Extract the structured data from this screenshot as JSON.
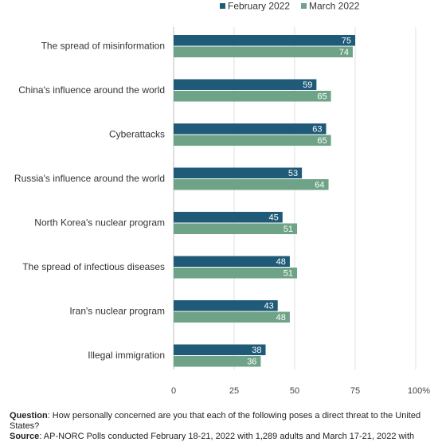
{
  "chart_data": {
    "type": "bar",
    "orientation": "horizontal",
    "categories": [
      "The spread of misinformation",
      "China's influence around the world",
      "Cyberattacks",
      "Russia's influence around the world",
      "North Korea's nuclear program",
      "The spread of infectious diseases",
      "Iran's nuclear program",
      "Illegal immigration"
    ],
    "series": [
      {
        "name": "February 2022",
        "color": "#1f5b79",
        "values": [
          75,
          59,
          63,
          53,
          45,
          48,
          43,
          38
        ]
      },
      {
        "name": "March 2022",
        "color": "#6fa387",
        "values": [
          74,
          65,
          65,
          64,
          51,
          51,
          48,
          36
        ]
      }
    ],
    "xlim": [
      0,
      100
    ],
    "x_ticks": [
      0,
      25,
      50,
      75,
      100
    ],
    "x_tick_labels": [
      "0",
      "25",
      "50",
      "75",
      "100%"
    ],
    "grid": true,
    "legend_position": "top-right"
  },
  "footnote": {
    "question_label": "Question",
    "question_text": ": How personally concerned are you that each of the following poses a direct threat to the United States?",
    "source_label": "Source",
    "source_text": ": AP-NORC Polls conducted February 18-21, 2022 with 1,289 adults and March 17-21, 2022 with"
  }
}
